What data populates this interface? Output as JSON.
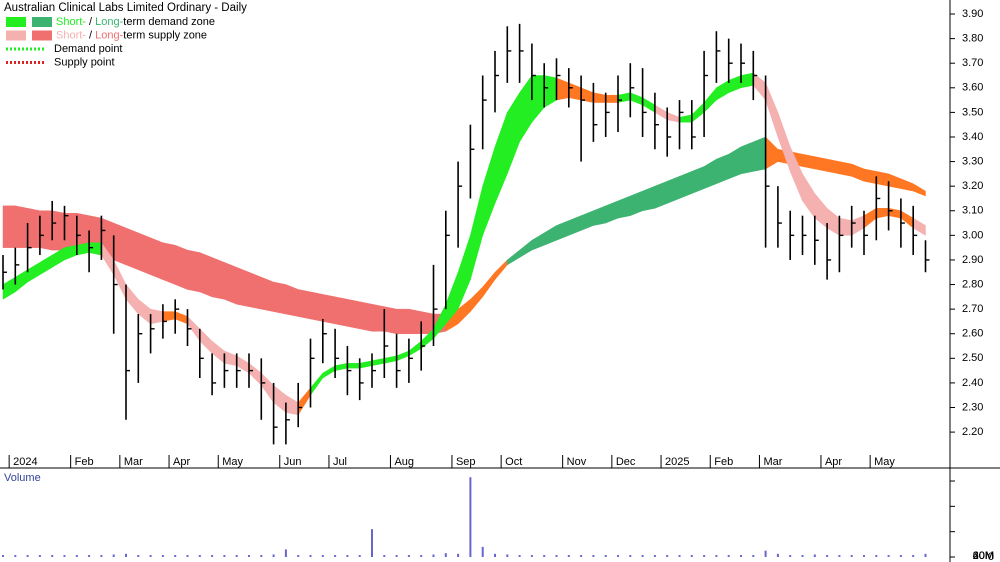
{
  "chart_data": {
    "type": "ohlc",
    "title": "Australian Clinical Labs Limited Ordinary - Daily",
    "legend": [
      {
        "colors": [
          "#22ee22",
          "#3cb371"
        ],
        "parts": [
          {
            "text": "Short-",
            "color": "#22ee22"
          },
          {
            "text": " / ",
            "color": "#000000"
          },
          {
            "text": "Long-",
            "color": "#3cb371"
          },
          {
            "text": "term demand zone",
            "color": "#000000"
          }
        ]
      },
      {
        "colors": [
          "#f5b0b0",
          "#f07070"
        ],
        "parts": [
          {
            "text": "Short-",
            "color": "#f5b0b0"
          },
          {
            "text": " / ",
            "color": "#000000"
          },
          {
            "text": "Long-",
            "color": "#f07070"
          },
          {
            "text": "term supply zone",
            "color": "#000000"
          }
        ]
      },
      {
        "line_color": "#22ee22",
        "parts": [
          {
            "text": "Demand point",
            "color": "#000000"
          }
        ]
      },
      {
        "line_color": "#dd2222",
        "parts": [
          {
            "text": "Supply point",
            "color": "#000000"
          }
        ]
      }
    ],
    "categories": [
      null,
      "2024",
      null,
      null,
      null,
      null,
      "Feb",
      null,
      null,
      null,
      "Mar",
      null,
      null,
      null,
      "Apr",
      null,
      null,
      null,
      "May",
      null,
      null,
      null,
      null,
      "Jun",
      null,
      null,
      null,
      "Jul",
      null,
      null,
      null,
      null,
      "Aug",
      null,
      null,
      null,
      null,
      "Sep",
      null,
      null,
      null,
      "Oct",
      null,
      null,
      null,
      null,
      "Nov",
      null,
      null,
      null,
      "Dec",
      null,
      null,
      null,
      "2025",
      null,
      null,
      null,
      "Feb",
      null,
      null,
      null,
      "Mar",
      null,
      null,
      null,
      null,
      "Apr",
      null,
      null,
      null,
      "May",
      null,
      null,
      null,
      null
    ],
    "high": [
      2.92,
      2.95,
      3.05,
      3.08,
      3.14,
      3.12,
      3.08,
      3.02,
      3.08,
      3.0,
      2.8,
      2.68,
      2.68,
      2.72,
      2.74,
      2.7,
      2.62,
      2.52,
      2.52,
      2.52,
      2.52,
      2.5,
      2.4,
      2.32,
      2.4,
      2.58,
      2.66,
      2.62,
      2.55,
      2.5,
      2.52,
      2.7,
      2.6,
      2.58,
      2.65,
      2.88,
      3.1,
      3.3,
      3.45,
      3.65,
      3.75,
      3.85,
      3.86,
      3.78,
      3.7,
      3.72,
      3.68,
      3.65,
      3.62,
      3.58,
      3.65,
      3.7,
      3.68,
      3.58,
      3.52,
      3.55,
      3.55,
      3.75,
      3.83,
      3.8,
      3.78,
      3.75,
      3.65,
      3.2,
      3.1,
      3.08,
      3.08,
      3.05,
      3.08,
      3.12,
      3.1,
      3.24,
      3.22,
      3.15,
      3.12,
      2.98
    ],
    "low": [
      2.78,
      2.8,
      2.85,
      2.92,
      2.98,
      2.98,
      2.92,
      2.85,
      2.9,
      2.6,
      2.25,
      2.4,
      2.52,
      2.58,
      2.6,
      2.55,
      2.42,
      2.35,
      2.38,
      2.38,
      2.38,
      2.25,
      2.15,
      2.15,
      2.22,
      2.3,
      2.48,
      2.42,
      2.35,
      2.33,
      2.38,
      2.42,
      2.38,
      2.4,
      2.45,
      2.55,
      2.7,
      2.95,
      3.15,
      3.35,
      3.5,
      3.62,
      3.62,
      3.55,
      3.52,
      3.55,
      3.52,
      3.3,
      3.38,
      3.4,
      3.42,
      3.48,
      3.4,
      3.35,
      3.32,
      3.35,
      3.35,
      3.4,
      3.62,
      3.62,
      3.62,
      3.55,
      2.95,
      2.95,
      2.9,
      2.92,
      2.88,
      2.82,
      2.85,
      2.95,
      2.92,
      2.98,
      3.02,
      2.95,
      2.92,
      2.85
    ],
    "close": [
      2.85,
      2.88,
      2.95,
      3.0,
      3.05,
      3.08,
      3.0,
      2.95,
      3.02,
      2.8,
      2.45,
      2.6,
      2.62,
      2.65,
      2.7,
      2.62,
      2.5,
      2.4,
      2.45,
      2.45,
      2.45,
      2.4,
      2.22,
      2.25,
      2.3,
      2.5,
      2.6,
      2.5,
      2.45,
      2.4,
      2.45,
      2.55,
      2.45,
      2.5,
      2.55,
      2.7,
      3.0,
      3.2,
      3.35,
      3.55,
      3.65,
      3.75,
      3.75,
      3.65,
      3.6,
      3.65,
      3.6,
      3.55,
      3.45,
      3.5,
      3.55,
      3.6,
      3.5,
      3.45,
      3.4,
      3.5,
      3.4,
      3.65,
      3.75,
      3.7,
      3.7,
      3.65,
      3.2,
      3.05,
      3.0,
      3.0,
      2.98,
      2.9,
      3.0,
      3.05,
      3.0,
      3.15,
      3.1,
      3.05,
      3.0,
      2.9
    ],
    "bar_color": "#000000",
    "zones": [
      {
        "upper": [
          3.12,
          3.12,
          3.11,
          3.1,
          3.1,
          3.09,
          3.09,
          3.08,
          3.07,
          3.05,
          3.03,
          3.01,
          2.99,
          2.97,
          2.96,
          2.94,
          2.93,
          2.91,
          2.89,
          2.87,
          2.85,
          2.83,
          2.81,
          2.8,
          2.78,
          2.77,
          2.76,
          2.75,
          2.74,
          2.73,
          2.72,
          2.71,
          2.7,
          2.7,
          2.69,
          2.68,
          2.68,
          2.7,
          2.74,
          2.79,
          2.85,
          2.9,
          2.94,
          2.98,
          3.01,
          3.04,
          3.06,
          3.08,
          3.1,
          3.12,
          3.14,
          3.16,
          3.18,
          3.2,
          3.22,
          3.24,
          3.26,
          3.28,
          3.31,
          3.33,
          3.36,
          3.38,
          3.4,
          3.35,
          3.34,
          3.33,
          3.32,
          3.31,
          3.3,
          3.29,
          3.27,
          3.26,
          3.25,
          3.23,
          3.21,
          3.18
        ],
        "lower": [
          2.95,
          2.95,
          2.95,
          2.95,
          2.94,
          2.94,
          2.94,
          2.93,
          2.92,
          2.9,
          2.88,
          2.86,
          2.84,
          2.82,
          2.8,
          2.78,
          2.77,
          2.75,
          2.74,
          2.72,
          2.71,
          2.7,
          2.69,
          2.68,
          2.67,
          2.66,
          2.65,
          2.64,
          2.63,
          2.62,
          2.61,
          2.61,
          2.6,
          2.6,
          2.6,
          2.6,
          2.61,
          2.64,
          2.69,
          2.75,
          2.82,
          2.88,
          2.91,
          2.94,
          2.96,
          2.98,
          3.0,
          3.02,
          3.04,
          3.05,
          3.07,
          3.08,
          3.1,
          3.11,
          3.13,
          3.15,
          3.17,
          3.19,
          3.21,
          3.23,
          3.25,
          3.26,
          3.27,
          3.3,
          3.29,
          3.28,
          3.27,
          3.26,
          3.25,
          3.24,
          3.22,
          3.21,
          3.2,
          3.19,
          3.18,
          3.16
        ],
        "colors": [
          "#f07070",
          "#f07070",
          "#f07070",
          "#f07070",
          "#f07070",
          "#f07070",
          "#f07070",
          "#f07070",
          "#f07070",
          "#f07070",
          "#f07070",
          "#f07070",
          "#f07070",
          "#f07070",
          "#f07070",
          "#f07070",
          "#f07070",
          "#f07070",
          "#f07070",
          "#f07070",
          "#f07070",
          "#f07070",
          "#f07070",
          "#f07070",
          "#f07070",
          "#f07070",
          "#f07070",
          "#f07070",
          "#f07070",
          "#f07070",
          "#f07070",
          "#f07070",
          "#f07070",
          "#f07070",
          "#f07070",
          "#f07070",
          "#ff7722",
          "#ff7722",
          "#ff7722",
          "#ff7722",
          "#ff7722",
          "#3cb371",
          "#3cb371",
          "#3cb371",
          "#3cb371",
          "#3cb371",
          "#3cb371",
          "#3cb371",
          "#3cb371",
          "#3cb371",
          "#3cb371",
          "#3cb371",
          "#3cb371",
          "#3cb371",
          "#3cb371",
          "#3cb371",
          "#3cb371",
          "#3cb371",
          "#3cb371",
          "#3cb371",
          "#3cb371",
          "#3cb371",
          "#ff7722",
          "#ff7722",
          "#ff7722",
          "#ff7722",
          "#ff7722",
          "#ff7722",
          "#ff7722",
          "#ff7722",
          "#ff7722",
          "#ff7722",
          "#ff7722",
          "#ff7722",
          "#ff7722",
          "#ff7722"
        ]
      },
      {
        "upper": [
          2.8,
          2.83,
          2.86,
          2.89,
          2.92,
          2.95,
          2.96,
          2.97,
          2.97,
          2.9,
          2.8,
          2.74,
          2.7,
          2.69,
          2.69,
          2.67,
          2.62,
          2.57,
          2.53,
          2.51,
          2.48,
          2.44,
          2.39,
          2.35,
          2.32,
          2.38,
          2.44,
          2.47,
          2.48,
          2.48,
          2.49,
          2.5,
          2.51,
          2.53,
          2.57,
          2.62,
          2.72,
          2.85,
          3.0,
          3.2,
          3.36,
          3.5,
          3.58,
          3.65,
          3.65,
          3.64,
          3.62,
          3.6,
          3.58,
          3.57,
          3.57,
          3.58,
          3.56,
          3.53,
          3.5,
          3.48,
          3.49,
          3.54,
          3.6,
          3.63,
          3.65,
          3.66,
          3.62,
          3.5,
          3.36,
          3.25,
          3.17,
          3.11,
          3.07,
          3.06,
          3.08,
          3.11,
          3.11,
          3.1,
          3.07,
          3.04
        ],
        "lower": [
          2.74,
          2.77,
          2.81,
          2.84,
          2.87,
          2.9,
          2.92,
          2.93,
          2.92,
          2.84,
          2.74,
          2.68,
          2.64,
          2.65,
          2.66,
          2.64,
          2.57,
          2.52,
          2.48,
          2.47,
          2.44,
          2.39,
          2.32,
          2.28,
          2.27,
          2.35,
          2.42,
          2.45,
          2.46,
          2.46,
          2.47,
          2.48,
          2.49,
          2.51,
          2.54,
          2.58,
          2.64,
          2.7,
          2.82,
          3.0,
          3.13,
          3.25,
          3.38,
          3.46,
          3.52,
          3.55,
          3.56,
          3.55,
          3.54,
          3.54,
          3.54,
          3.55,
          3.53,
          3.5,
          3.47,
          3.46,
          3.46,
          3.5,
          3.55,
          3.58,
          3.6,
          3.61,
          3.55,
          3.4,
          3.26,
          3.14,
          3.07,
          3.03,
          3.0,
          3.0,
          3.03,
          3.07,
          3.08,
          3.07,
          3.03,
          3.0
        ],
        "colors": [
          "#22ee22",
          "#22ee22",
          "#22ee22",
          "#22ee22",
          "#22ee22",
          "#22ee22",
          "#22ee22",
          "#22ee22",
          "#f5b0b0",
          "#f5b0b0",
          "#f5b0b0",
          "#f5b0b0",
          "#f5b0b0",
          "#ff7722",
          "#ff7722",
          "#f5b0b0",
          "#f5b0b0",
          "#f5b0b0",
          "#f5b0b0",
          "#f5b0b0",
          "#f5b0b0",
          "#f5b0b0",
          "#f5b0b0",
          "#f5b0b0",
          "#ff7722",
          "#22ee22",
          "#22ee22",
          "#22ee22",
          "#22ee22",
          "#22ee22",
          "#22ee22",
          "#22ee22",
          "#22ee22",
          "#22ee22",
          "#22ee22",
          "#22ee22",
          "#22ee22",
          "#22ee22",
          "#22ee22",
          "#22ee22",
          "#22ee22",
          "#22ee22",
          "#22ee22",
          "#22ee22",
          "#22ee22",
          "#ff7722",
          "#ff7722",
          "#ff7722",
          "#ff7722",
          "#ff7722",
          "#22ee22",
          "#22ee22",
          "#22ee22",
          "#f5b0b0",
          "#f5b0b0",
          "#22ee22",
          "#22ee22",
          "#22ee22",
          "#22ee22",
          "#22ee22",
          "#22ee22",
          "#f5b0b0",
          "#f5b0b0",
          "#f5b0b0",
          "#f5b0b0",
          "#f5b0b0",
          "#f5b0b0",
          "#f5b0b0",
          "#f5b0b0",
          "#f5b0b0",
          "#ff7722",
          "#ff7722",
          "#ff7722",
          "#ff7722",
          "#f5b0b0",
          "#f5b0b0"
        ]
      }
    ],
    "ylim": [
      2.054,
      3.957
    ],
    "yticks": [
      {
        "value": 2.2,
        "label": "2.20"
      },
      {
        "value": 2.3,
        "label": "2.30"
      },
      {
        "value": 2.4,
        "label": "2.40"
      },
      {
        "value": 2.5,
        "label": "2.50"
      },
      {
        "value": 2.6,
        "label": "2.60"
      },
      {
        "value": 2.7,
        "label": "2.70"
      },
      {
        "value": 2.8,
        "label": "2.80"
      },
      {
        "value": 2.9,
        "label": "2.90"
      },
      {
        "value": 3.0,
        "label": "3.00"
      },
      {
        "value": 3.1,
        "label": "3.10"
      },
      {
        "value": 3.2,
        "label": "3.20"
      },
      {
        "value": 3.3,
        "label": "3.30"
      },
      {
        "value": 3.4,
        "label": "3.40"
      },
      {
        "value": 3.5,
        "label": "3.50"
      },
      {
        "value": 3.6,
        "label": "3.60"
      },
      {
        "value": 3.7,
        "label": "3.70"
      },
      {
        "value": 3.8,
        "label": "3.80"
      },
      {
        "value": 3.9,
        "label": "3.90"
      }
    ],
    "volume": {
      "label": "Volume",
      "color": "#6666cc",
      "values": [
        1500000,
        1500000,
        1500000,
        1500000,
        1500000,
        1500000,
        1500000,
        1500000,
        1500000,
        2000000,
        2500000,
        1500000,
        1500000,
        1500000,
        1500000,
        1500000,
        1500000,
        1500000,
        1500000,
        1500000,
        1500000,
        1500000,
        2000000,
        6000000,
        1500000,
        1500000,
        1500000,
        1500000,
        1500000,
        1500000,
        22000000,
        1500000,
        1500000,
        1500000,
        1500000,
        2000000,
        3000000,
        2500000,
        63000000,
        8000000,
        2500000,
        2000000,
        1500000,
        1500000,
        1500000,
        1500000,
        1500000,
        1500000,
        1500000,
        1500000,
        1500000,
        1500000,
        1500000,
        1500000,
        1500000,
        1500000,
        1500000,
        1500000,
        1500000,
        1500000,
        1500000,
        1500000,
        5000000,
        2500000,
        1500000,
        1500000,
        2000000,
        1500000,
        1500000,
        1500000,
        1500000,
        1500000,
        1500000,
        1500000,
        1500000,
        2500000
      ],
      "ylim": [
        -3950000,
        68700000
      ],
      "yticks": [
        0,
        {
          "value": 20000000,
          "label": "20M"
        },
        {
          "value": 40000000,
          "label": "40M"
        },
        {
          "value": 60000000,
          "label": "60M"
        }
      ]
    }
  }
}
